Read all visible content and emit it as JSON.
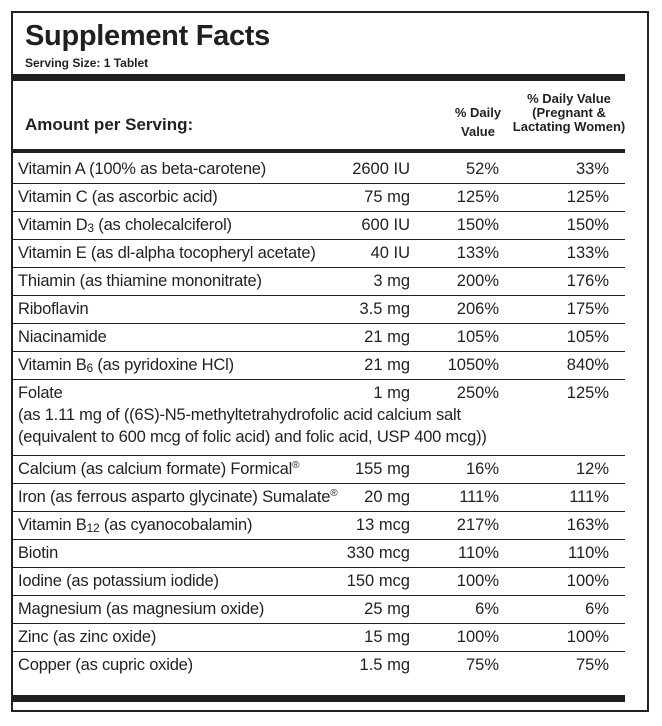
{
  "label": {
    "title": "Supplement Facts",
    "serving_size": "Serving Size: 1 Tablet",
    "amount_header": "Amount per Serving:",
    "dv_header_lines": [
      "% Daily",
      "Value"
    ],
    "dv_pregnant_header_lines": [
      "% Daily Value",
      "(Pregnant &",
      "Lactating Women)"
    ]
  },
  "nutrients": [
    {
      "name": "Vitamin A (100% as beta-carotene)",
      "amount": "2600 IU",
      "dv": "52%",
      "dv_pregnant": "33%"
    },
    {
      "name_pre": "Vitamin C (as ascorbic acid)",
      "amount": "75 mg",
      "dv": "125%",
      "dv_pregnant": "125%"
    },
    {
      "name_pre": "Vitamin D",
      "name_sub": "3",
      "name_post": " (as cholecalciferol)",
      "amount": "600 IU",
      "dv": "150%",
      "dv_pregnant": "150%"
    },
    {
      "name_pre": "Vitamin E (as dl-alpha tocopheryl acetate)",
      "amount": "40 IU",
      "dv": "133%",
      "dv_pregnant": "133%"
    },
    {
      "name_pre": "Thiamin (as thiamine mononitrate)",
      "amount": "3 mg",
      "dv": "200%",
      "dv_pregnant": "176%"
    },
    {
      "name_pre": "Riboflavin",
      "amount": "3.5 mg",
      "dv": "206%",
      "dv_pregnant": "175%"
    },
    {
      "name_pre": "Niacinamide",
      "amount": "21 mg",
      "dv": "105%",
      "dv_pregnant": "105%"
    },
    {
      "name_pre": "Vitamin B",
      "name_sub": "6",
      "name_post": " (as pyridoxine HCl)",
      "amount": "21 mg",
      "dv": "1050%",
      "dv_pregnant": "840%"
    },
    {
      "name_pre": "Folate",
      "amount": "1 mg",
      "dv": "250%",
      "dv_pregnant": "125%",
      "extra_lines": [
        "(as 1.11 mg of ((6S)-N5-methyltetrahydrofolic acid calcium salt",
        "(equivalent to 600 mcg of folic acid) and folic acid, USP 400 mcg))"
      ]
    },
    {
      "name_pre": "Calcium (as calcium formate) Formical",
      "name_sup": "®",
      "amount": "155 mg",
      "dv": "16%",
      "dv_pregnant": "12%"
    },
    {
      "name_pre": "Iron (as ferrous asparto glycinate) Sumalate",
      "name_sup": "®",
      "amount": "20 mg",
      "dv": "111%",
      "dv_pregnant": "111%"
    },
    {
      "name_pre": "Vitamin B",
      "name_sub": "12",
      "name_post": " (as cyanocobalamin)",
      "amount": "13 mcg",
      "dv": "217%",
      "dv_pregnant": "163%"
    },
    {
      "name_pre": "Biotin",
      "amount": "330 mcg",
      "dv": "110%",
      "dv_pregnant": "110%"
    },
    {
      "name_pre": "Iodine (as potassium iodide)",
      "amount": "150 mcg",
      "dv": "100%",
      "dv_pregnant": "100%"
    },
    {
      "name_pre": "Magnesium (as magnesium oxide)",
      "amount": "25 mg",
      "dv": "6%",
      "dv_pregnant": "6%"
    },
    {
      "name_pre": "Zinc (as zinc oxide)",
      "amount": "15 mg",
      "dv": "100%",
      "dv_pregnant": "100%"
    },
    {
      "name_pre": "Copper (as cupric oxide)",
      "amount": "1.5 mg",
      "dv": "75%",
      "dv_pregnant": "75%"
    }
  ]
}
